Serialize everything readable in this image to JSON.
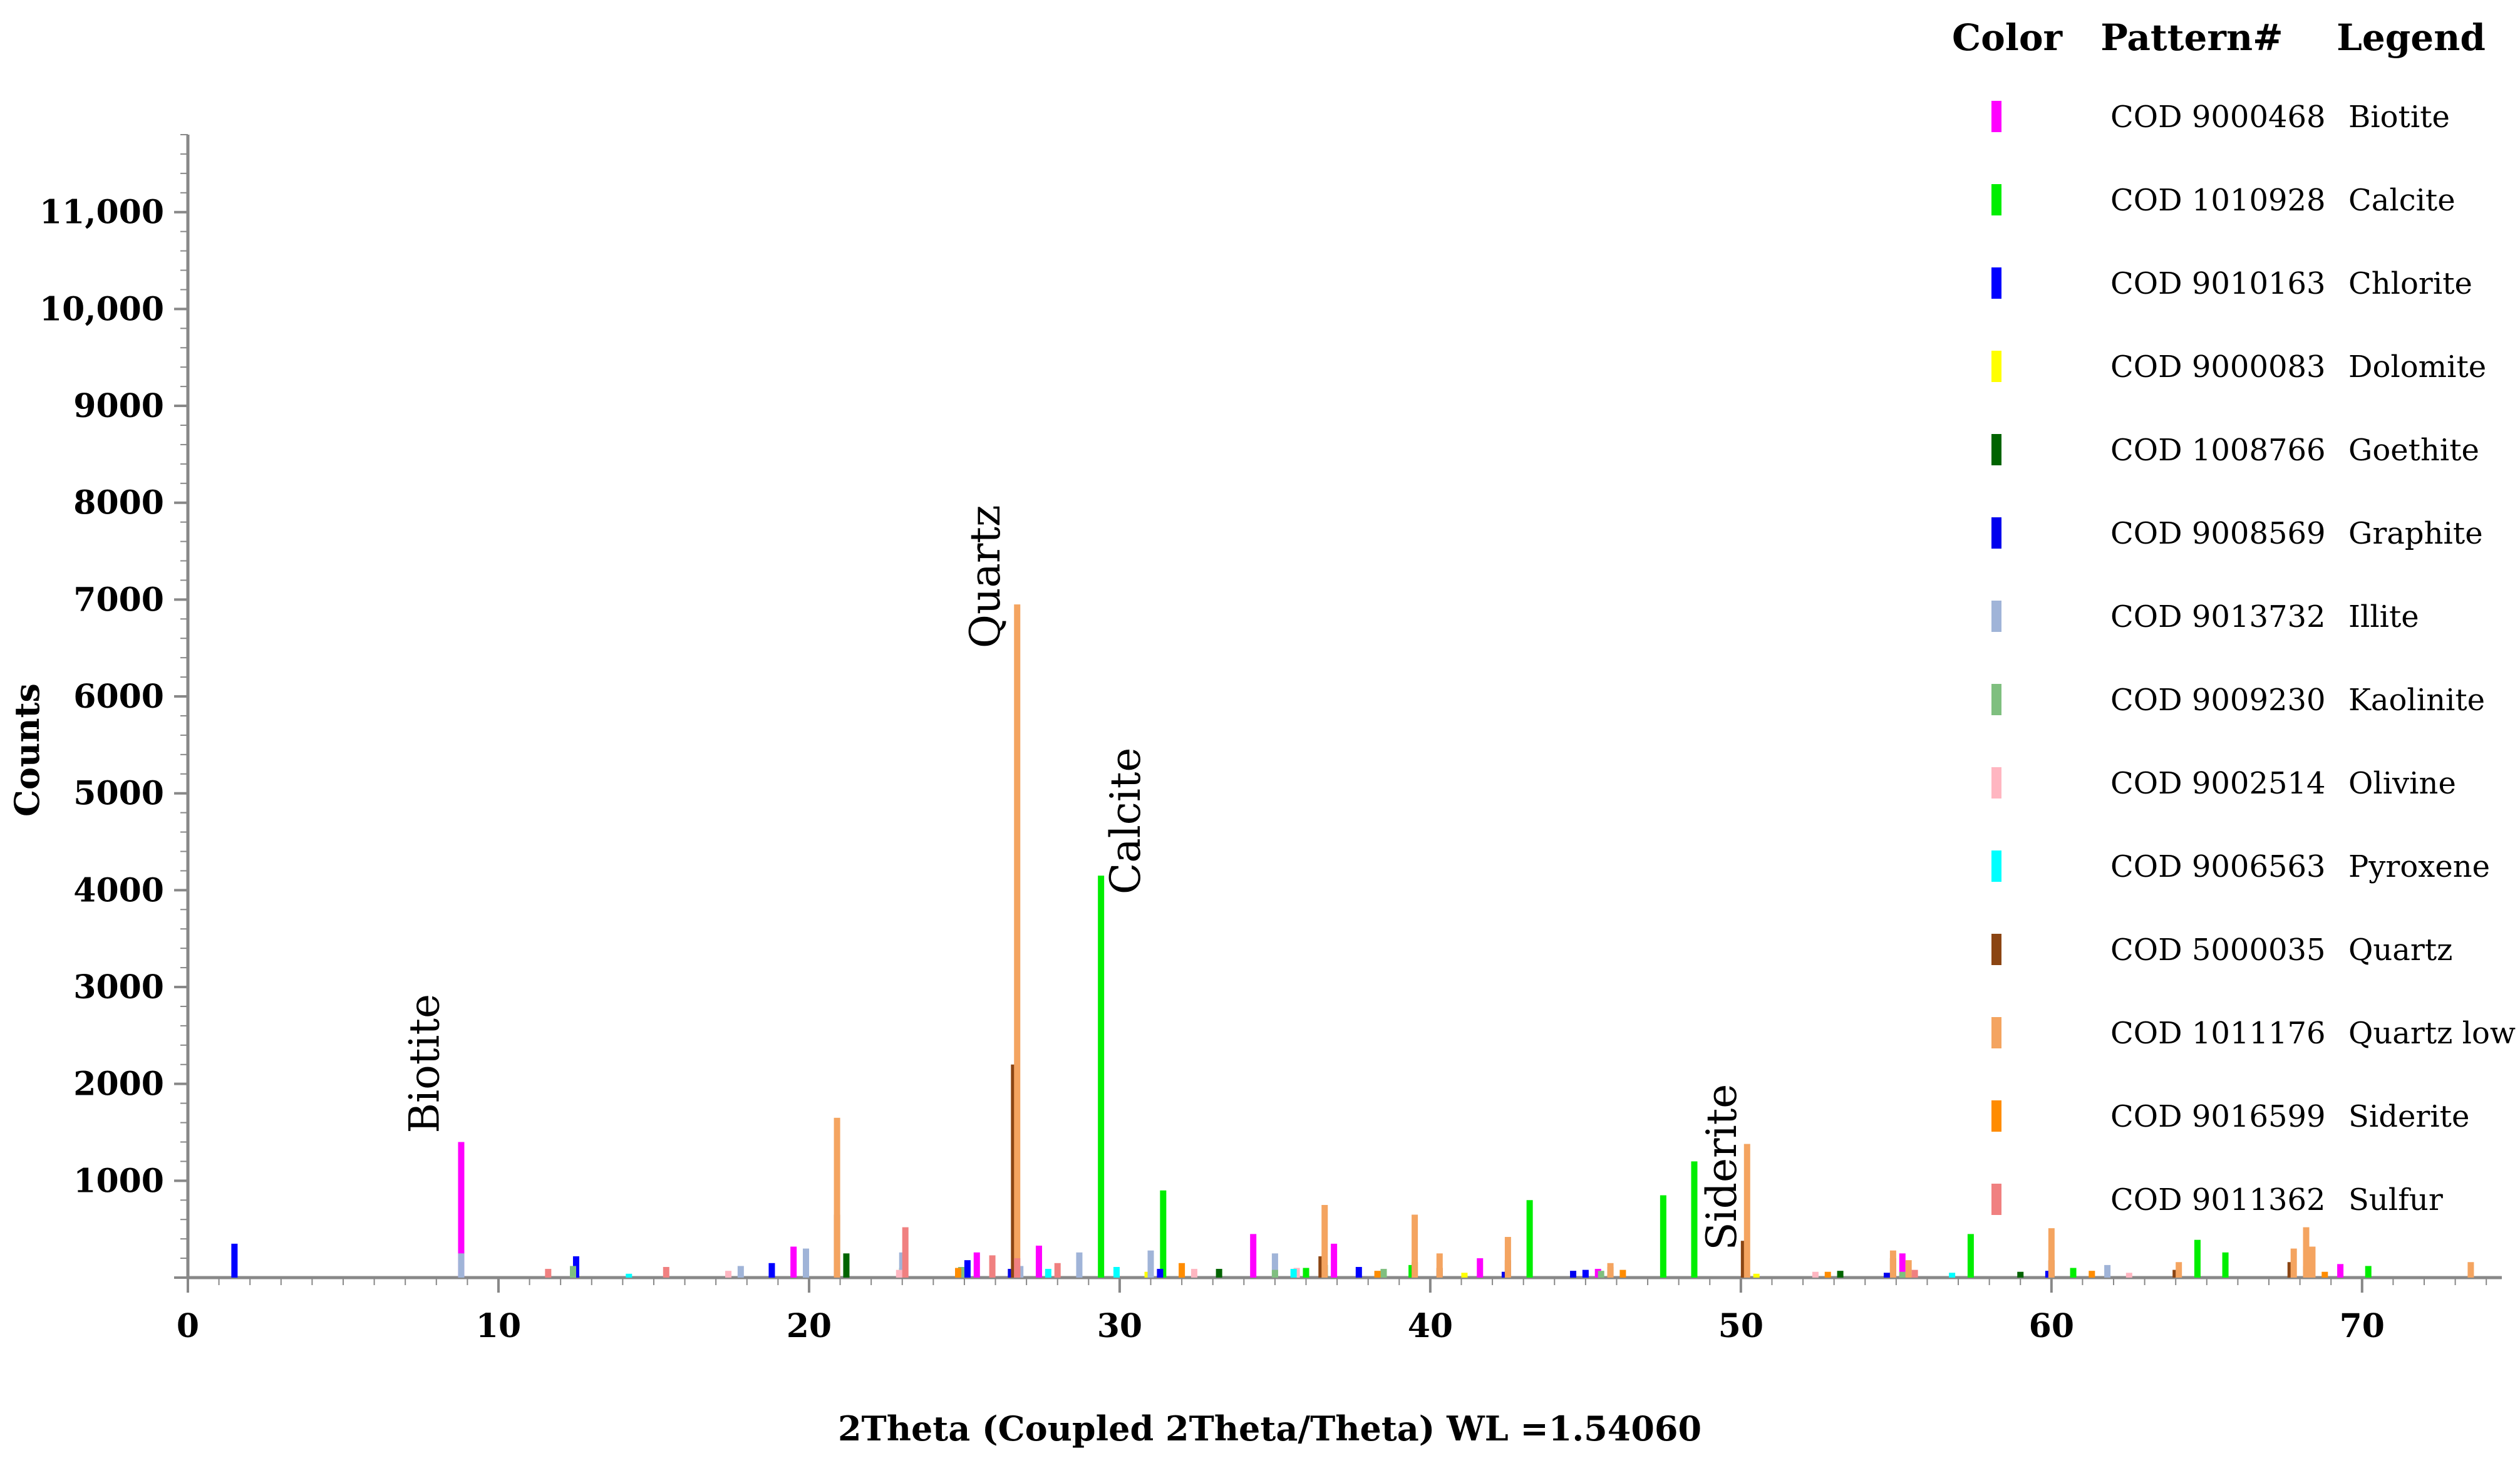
{
  "chart_data": {
    "type": "bar",
    "xlabel": "2Theta (Coupled 2Theta/Theta) WL =1.54060",
    "ylabel": "Counts",
    "xlim": [
      0,
      74.5
    ],
    "ylim": [
      0,
      11800
    ],
    "x_ticks": [
      0,
      10,
      20,
      30,
      40,
      50,
      60,
      70
    ],
    "x_tick_labels": [
      "0",
      "10",
      "20",
      "30",
      "40",
      "50",
      "60",
      "70"
    ],
    "y_ticks": [
      1000,
      2000,
      3000,
      4000,
      5000,
      6000,
      7000,
      8000,
      9000,
      10000,
      11000
    ],
    "y_tick_labels": [
      "1000",
      "2000",
      "3000",
      "4000",
      "5000",
      "6000",
      "7000",
      "8000",
      "9000",
      "10,000",
      "11,000"
    ],
    "legend_headers": {
      "color": "Color",
      "pattern": "Pattern#",
      "legend": "Legend"
    },
    "legend_placement": "top-right",
    "series": [
      {
        "name": "Biotite",
        "pattern": "COD 9000468",
        "color": "#ff00ff",
        "x": [
          8.8,
          19.5,
          25.4,
          27.4,
          34.3,
          36.9,
          41.6,
          45.4,
          55.2,
          69.3
        ],
        "y": [
          1400,
          320,
          260,
          330,
          450,
          350,
          200,
          90,
          250,
          140
        ]
      },
      {
        "name": "Calcite",
        "pattern": "COD 1010928",
        "color": "#00ee00",
        "x": [
          23.0,
          29.4,
          31.4,
          36.0,
          39.4,
          43.2,
          47.5,
          48.5,
          57.4,
          60.7,
          64.7,
          65.6,
          70.2
        ],
        "y": [
          100,
          4150,
          900,
          100,
          130,
          800,
          850,
          1200,
          450,
          100,
          390,
          260,
          120
        ]
      },
      {
        "name": "Chlorite",
        "pattern": "COD 9010163",
        "color": "#0000ff",
        "x": [
          1.5,
          12.5,
          18.8,
          25.1,
          31.3,
          37.7,
          45.0,
          59.9
        ],
        "y": [
          350,
          220,
          150,
          180,
          90,
          110,
          80,
          70
        ]
      },
      {
        "name": "Dolomite",
        "pattern": "COD 9000083",
        "color": "#ffff00",
        "x": [
          30.9,
          41.1,
          50.5
        ],
        "y": [
          60,
          50,
          40
        ]
      },
      {
        "name": "Goethite",
        "pattern": "COD 1008766",
        "color": "#006400",
        "x": [
          21.2,
          33.2,
          36.6,
          53.2,
          59.0
        ],
        "y": [
          250,
          90,
          130,
          70,
          60
        ]
      },
      {
        "name": "Graphite",
        "pattern": "COD 9008569",
        "color": "#0000ee",
        "x": [
          26.5,
          42.4,
          44.6,
          54.7
        ],
        "y": [
          90,
          60,
          70,
          50
        ]
      },
      {
        "name": "Illite",
        "pattern": "COD 9013732",
        "color": "#a0b4d8",
        "x": [
          8.8,
          17.8,
          19.9,
          23.0,
          26.8,
          28.7,
          31.0,
          35.0,
          61.8
        ],
        "y": [
          250,
          120,
          300,
          260,
          120,
          260,
          280,
          250,
          130
        ]
      },
      {
        "name": "Kaolinite",
        "pattern": "COD 9009230",
        "color": "#7fbf7f",
        "x": [
          12.4,
          24.9,
          35.0,
          38.5,
          45.5,
          55.2
        ],
        "y": [
          120,
          110,
          80,
          90,
          70,
          60
        ]
      },
      {
        "name": "Olivine",
        "pattern": "COD 9002514",
        "color": "#ffb6c1",
        "x": [
          17.4,
          22.9,
          32.4,
          35.7,
          52.4,
          62.5
        ],
        "y": [
          70,
          80,
          90,
          100,
          60,
          50
        ]
      },
      {
        "name": "Pyroxene",
        "pattern": "COD 9006563",
        "color": "#00ffff",
        "x": [
          14.2,
          27.7,
          29.9,
          35.6,
          56.8
        ],
        "y": [
          40,
          90,
          110,
          90,
          50
        ]
      },
      {
        "name": "Quartz",
        "pattern": "COD 5000035",
        "color": "#8b4513",
        "x": [
          20.9,
          26.6,
          36.5,
          39.5,
          40.3,
          42.5,
          45.8,
          50.1,
          54.9,
          60.0,
          64.0,
          67.7,
          68.2
        ],
        "y": [
          650,
          2200,
          220,
          160,
          100,
          180,
          110,
          380,
          200,
          180,
          80,
          160,
          120
        ]
      },
      {
        "name": "Quartz low",
        "pattern": "COD 1011176",
        "color": "#f4a460",
        "x": [
          20.9,
          26.7,
          36.6,
          39.5,
          40.3,
          42.5,
          45.8,
          50.2,
          54.9,
          55.4,
          60.0,
          64.1,
          67.8,
          68.2,
          68.4,
          73.5
        ],
        "y": [
          1650,
          6950,
          750,
          650,
          250,
          420,
          150,
          1380,
          280,
          180,
          510,
          160,
          300,
          520,
          320,
          160
        ]
      },
      {
        "name": "Siderite",
        "pattern": "COD 9016599",
        "color": "#ff8c00",
        "x": [
          24.8,
          32.0,
          38.3,
          46.2,
          52.8,
          61.3,
          68.8
        ],
        "y": [
          100,
          150,
          70,
          80,
          60,
          70,
          60
        ]
      },
      {
        "name": "Sulfur",
        "pattern": "COD 9011362",
        "color": "#f08080",
        "x": [
          11.6,
          15.4,
          23.1,
          25.9,
          26.7,
          28.0,
          55.6
        ],
        "y": [
          90,
          110,
          520,
          230,
          200,
          150,
          80
        ]
      }
    ],
    "annotations": [
      {
        "text": "Biotite",
        "x": 8.8,
        "y": 1400
      },
      {
        "text": "Quartz",
        "x": 26.7,
        "y": 6950
      },
      {
        "text": "Calcite",
        "x": 29.4,
        "y": 4150
      },
      {
        "text": "Siderite",
        "x": 50.2,
        "y": 1380
      }
    ]
  }
}
